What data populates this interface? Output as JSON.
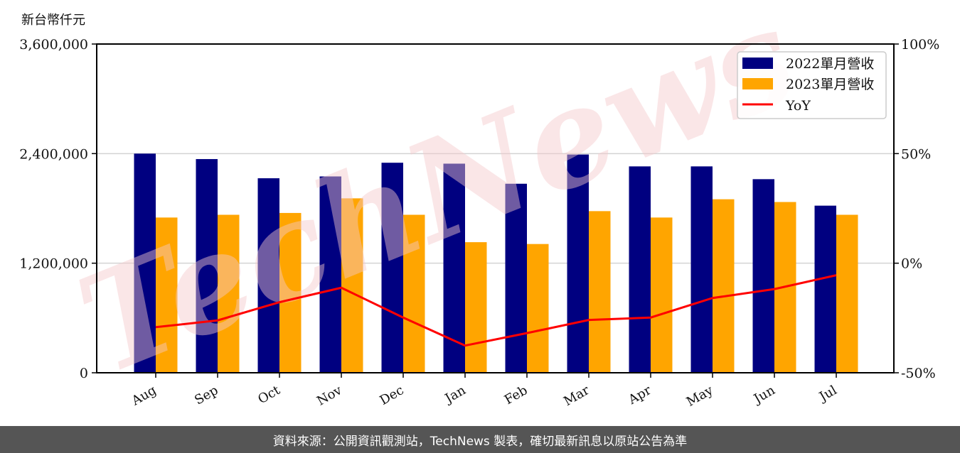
{
  "unit_label": "新台幣仟元",
  "footer": "資料來源：公開資訊觀測站，TechNews 製表，確切最新訊息以原站公告為準",
  "watermark": "TechNews",
  "colors": {
    "bar_2022": "#000080",
    "bar_2023": "#FFA500",
    "yoy_line": "#FF0000",
    "grid": "#d3d3d3",
    "footer_bg": "#555555",
    "watermark": "#f5c9cc"
  },
  "chart_data": {
    "type": "bar",
    "title": "",
    "xlabel": "",
    "ylabel": "新台幣仟元",
    "y2label": "",
    "categories": [
      "Aug",
      "Sep",
      "Oct",
      "Nov",
      "Dec",
      "Jan",
      "Feb",
      "Mar",
      "Apr",
      "May",
      "Jun",
      "Jul"
    ],
    "series": [
      {
        "name": "2022單月營收",
        "type": "bar",
        "axis": "left",
        "values": [
          2400000,
          2340000,
          2130000,
          2150000,
          2300000,
          2290000,
          2070000,
          2390000,
          2260000,
          2260000,
          2120000,
          1830000
        ]
      },
      {
        "name": "2023單月營收",
        "type": "bar",
        "axis": "left",
        "values": [
          1700000,
          1730000,
          1750000,
          1910000,
          1730000,
          1430000,
          1410000,
          1770000,
          1700000,
          1900000,
          1870000,
          1730000
        ]
      },
      {
        "name": "YoY",
        "type": "line",
        "axis": "right",
        "unit": "%",
        "values": [
          -29.2,
          -26.1,
          -17.8,
          -11.2,
          -24.8,
          -37.6,
          -31.9,
          -25.9,
          -24.8,
          -15.9,
          -11.8,
          -5.5
        ]
      }
    ],
    "ylim": [
      0,
      3600000
    ],
    "yticks": [
      0,
      1200000,
      2400000,
      3600000
    ],
    "ytick_labels": [
      "0",
      "1,200,000",
      "2,400,000",
      "3,600,000"
    ],
    "y2lim": [
      -50,
      100
    ],
    "y2ticks": [
      -50,
      0,
      50,
      100
    ],
    "y2tick_labels": [
      "-50%",
      "0%",
      "50%",
      "100%"
    ],
    "grid": true,
    "legend_position": "upper right",
    "legend": [
      "2022單月營收",
      "2023單月營收",
      "YoY"
    ]
  }
}
